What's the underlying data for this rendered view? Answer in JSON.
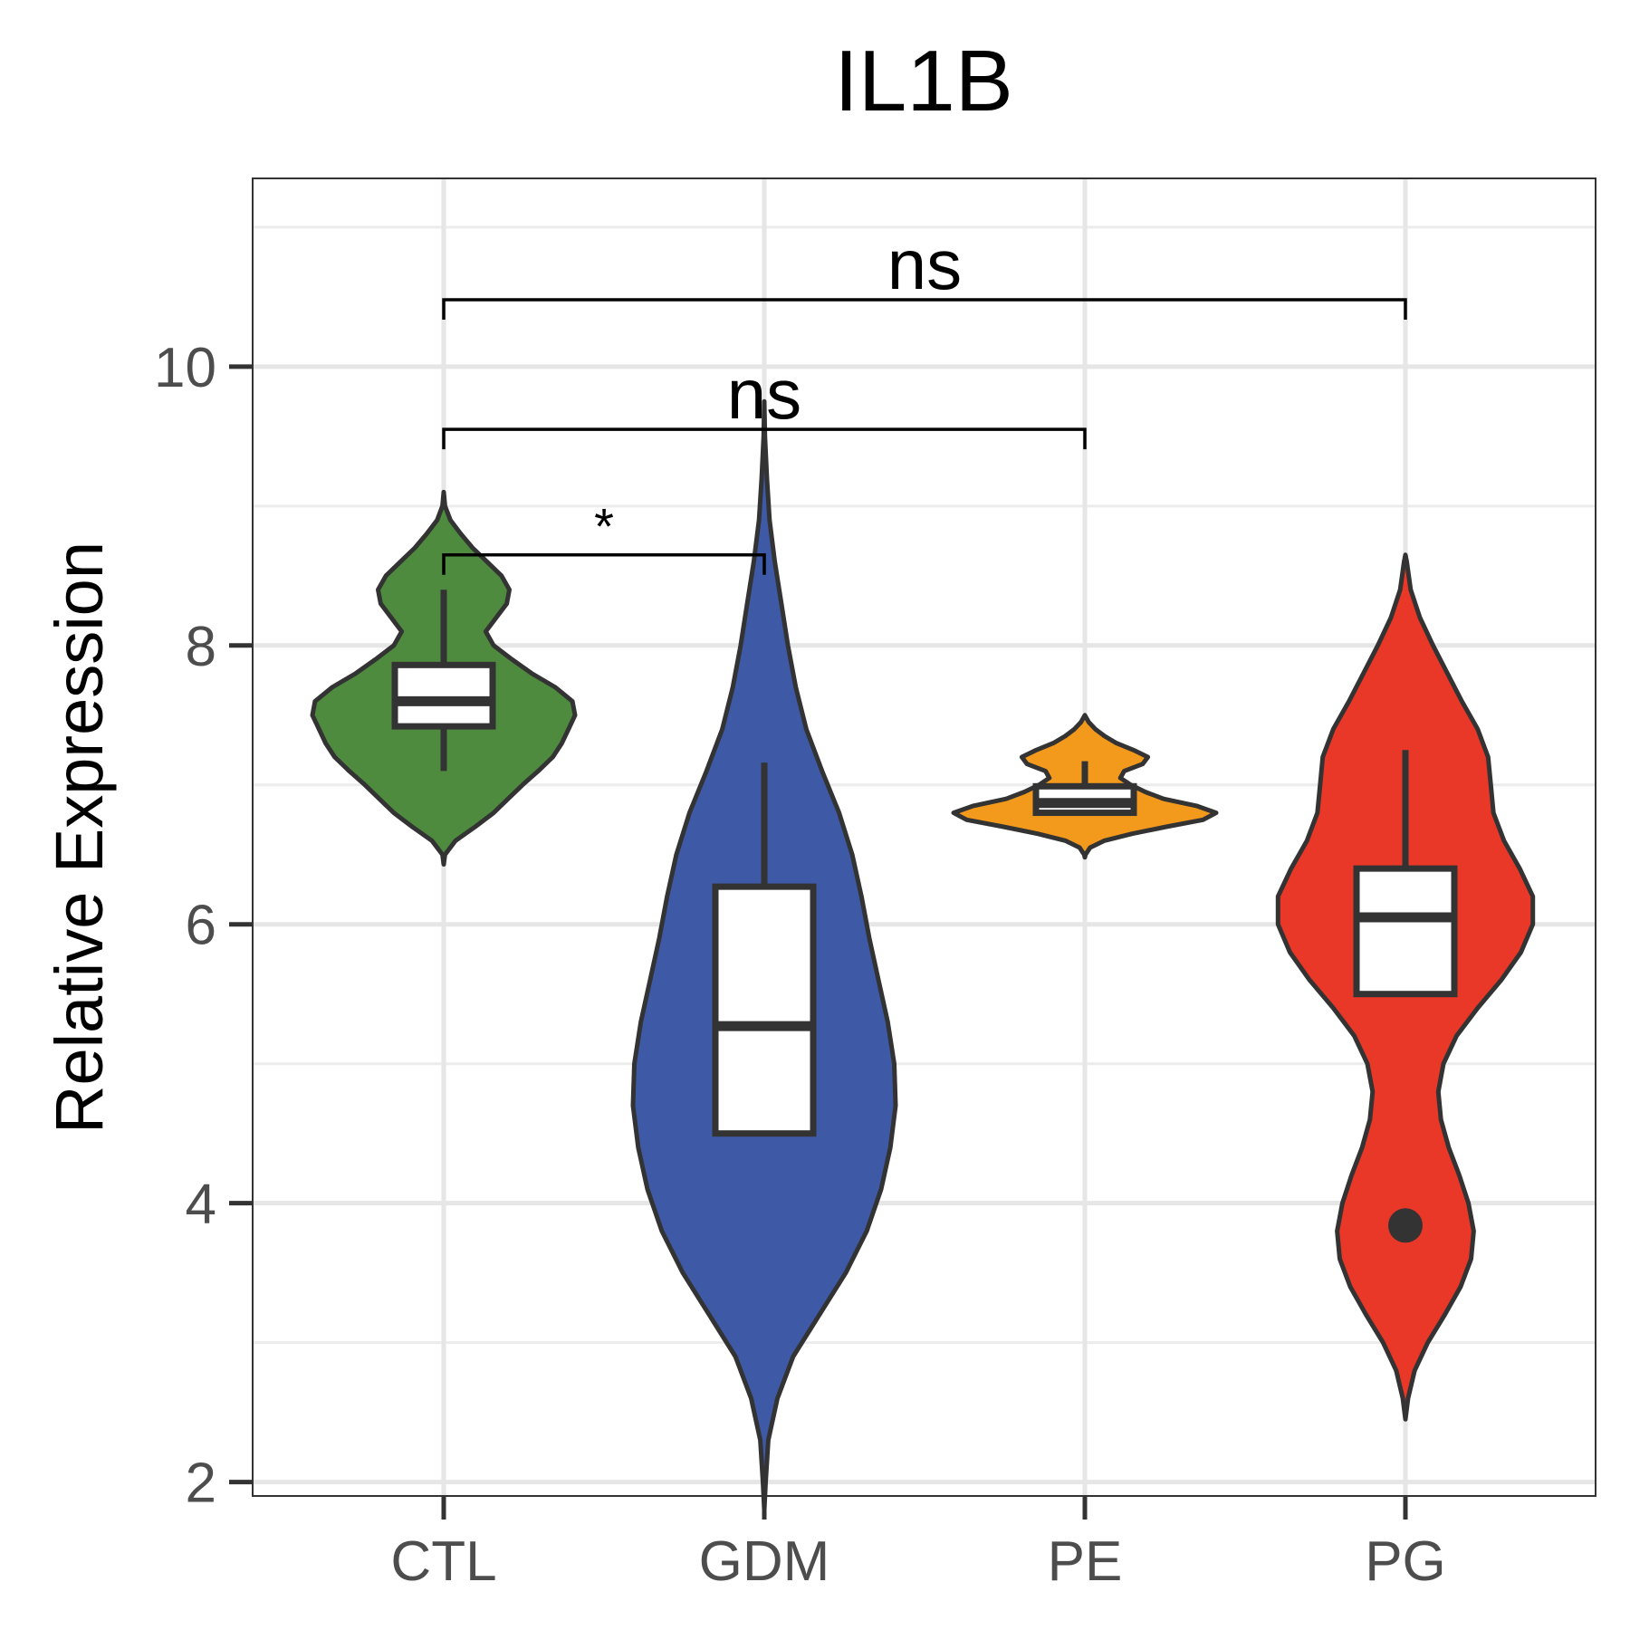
{
  "chart_data": {
    "type": "violin",
    "title": "IL1B",
    "xlabel": "",
    "ylabel": "Relative Expression",
    "categories": [
      "CTL",
      "GDM",
      "PE",
      "PG"
    ],
    "ylim": [
      1.9,
      11.35
    ],
    "y_ticks": [
      2,
      4,
      6,
      8,
      10
    ],
    "y_minor_ticks": [
      3,
      5,
      7,
      9,
      11
    ],
    "grid": true,
    "legend": "none",
    "groups": [
      {
        "name": "CTL",
        "color": "#4e8b3e",
        "box": {
          "whisker_low": 7.1,
          "q1": 7.42,
          "median": 7.6,
          "q3": 7.86,
          "whisker_high": 8.4
        },
        "outliers": [],
        "violin": [
          [
            6.43,
            0
          ],
          [
            6.5,
            0.01
          ],
          [
            6.6,
            0.09
          ],
          [
            6.7,
            0.24
          ],
          [
            6.8,
            0.38
          ],
          [
            6.9,
            0.49
          ],
          [
            7.0,
            0.6
          ],
          [
            7.1,
            0.72
          ],
          [
            7.2,
            0.83
          ],
          [
            7.3,
            0.9
          ],
          [
            7.4,
            0.95
          ],
          [
            7.5,
            1.0
          ],
          [
            7.6,
            0.98
          ],
          [
            7.7,
            0.85
          ],
          [
            7.8,
            0.67
          ],
          [
            7.9,
            0.52
          ],
          [
            8.0,
            0.38
          ],
          [
            8.1,
            0.32
          ],
          [
            8.2,
            0.4
          ],
          [
            8.3,
            0.48
          ],
          [
            8.4,
            0.5
          ],
          [
            8.5,
            0.44
          ],
          [
            8.6,
            0.33
          ],
          [
            8.7,
            0.22
          ],
          [
            8.8,
            0.13
          ],
          [
            8.9,
            0.05
          ],
          [
            9.0,
            0.01
          ],
          [
            9.1,
            0
          ]
        ]
      },
      {
        "name": "GDM",
        "color": "#3e5aa6",
        "box": {
          "whisker_low": 4.5,
          "q1": 4.5,
          "median": 5.27,
          "q3": 6.27,
          "whisker_high": 7.16
        },
        "outliers": [],
        "violin": [
          [
            1.8,
            0
          ],
          [
            2.0,
            0.01
          ],
          [
            2.3,
            0.03
          ],
          [
            2.6,
            0.1
          ],
          [
            2.9,
            0.22
          ],
          [
            3.2,
            0.42
          ],
          [
            3.5,
            0.62
          ],
          [
            3.8,
            0.78
          ],
          [
            4.1,
            0.89
          ],
          [
            4.4,
            0.96
          ],
          [
            4.7,
            1.0
          ],
          [
            5.0,
            0.99
          ],
          [
            5.3,
            0.94
          ],
          [
            5.6,
            0.87
          ],
          [
            5.9,
            0.8
          ],
          [
            6.2,
            0.74
          ],
          [
            6.5,
            0.67
          ],
          [
            6.8,
            0.57
          ],
          [
            7.1,
            0.44
          ],
          [
            7.4,
            0.32
          ],
          [
            7.7,
            0.24
          ],
          [
            8.0,
            0.18
          ],
          [
            8.3,
            0.13
          ],
          [
            8.6,
            0.08
          ],
          [
            8.9,
            0.04
          ],
          [
            9.2,
            0.02
          ],
          [
            9.5,
            0.005
          ],
          [
            9.75,
            0
          ]
        ]
      },
      {
        "name": "PE",
        "color": "#f39a1d",
        "box": {
          "whisker_low": 6.78,
          "q1": 6.8,
          "median": 6.87,
          "q3": 6.99,
          "whisker_high": 7.17
        },
        "outliers": [],
        "violin": [
          [
            6.48,
            0
          ],
          [
            6.5,
            0.005
          ],
          [
            6.55,
            0.04
          ],
          [
            6.6,
            0.15
          ],
          [
            6.65,
            0.36
          ],
          [
            6.7,
            0.62
          ],
          [
            6.75,
            0.9
          ],
          [
            6.8,
            1.0
          ],
          [
            6.85,
            0.85
          ],
          [
            6.9,
            0.6
          ],
          [
            6.95,
            0.46
          ],
          [
            7.0,
            0.35
          ],
          [
            7.05,
            0.27
          ],
          [
            7.1,
            0.3
          ],
          [
            7.15,
            0.44
          ],
          [
            7.2,
            0.48
          ],
          [
            7.25,
            0.37
          ],
          [
            7.3,
            0.24
          ],
          [
            7.35,
            0.15
          ],
          [
            7.4,
            0.08
          ],
          [
            7.45,
            0.03
          ],
          [
            7.5,
            0
          ]
        ]
      },
      {
        "name": "PG",
        "color": "#e93728",
        "box": {
          "whisker_low": 5.5,
          "q1": 5.5,
          "median": 6.05,
          "q3": 6.4,
          "whisker_high": 7.25
        },
        "outliers": [
          3.84
        ],
        "violin": [
          [
            2.45,
            0
          ],
          [
            2.6,
            0.02
          ],
          [
            2.8,
            0.07
          ],
          [
            3.0,
            0.17
          ],
          [
            3.2,
            0.3
          ],
          [
            3.4,
            0.42
          ],
          [
            3.6,
            0.5
          ],
          [
            3.8,
            0.52
          ],
          [
            4.0,
            0.48
          ],
          [
            4.2,
            0.41
          ],
          [
            4.4,
            0.33
          ],
          [
            4.6,
            0.27
          ],
          [
            4.8,
            0.25
          ],
          [
            5.0,
            0.29
          ],
          [
            5.2,
            0.39
          ],
          [
            5.4,
            0.55
          ],
          [
            5.6,
            0.73
          ],
          [
            5.8,
            0.88
          ],
          [
            6.0,
            0.97
          ],
          [
            6.2,
            0.97
          ],
          [
            6.4,
            0.87
          ],
          [
            6.6,
            0.75
          ],
          [
            6.8,
            0.67
          ],
          [
            7.0,
            0.65
          ],
          [
            7.2,
            0.63
          ],
          [
            7.4,
            0.55
          ],
          [
            7.6,
            0.43
          ],
          [
            7.8,
            0.32
          ],
          [
            8.0,
            0.21
          ],
          [
            8.2,
            0.11
          ],
          [
            8.4,
            0.04
          ],
          [
            8.6,
            0.01
          ],
          [
            8.65,
            0
          ]
        ]
      }
    ],
    "comparisons": [
      {
        "from": "CTL",
        "to": "GDM",
        "label": "*",
        "y": 8.65
      },
      {
        "from": "CTL",
        "to": "PE",
        "label": "ns",
        "y": 9.55
      },
      {
        "from": "CTL",
        "to": "PG",
        "label": "ns",
        "y": 10.48
      }
    ]
  }
}
